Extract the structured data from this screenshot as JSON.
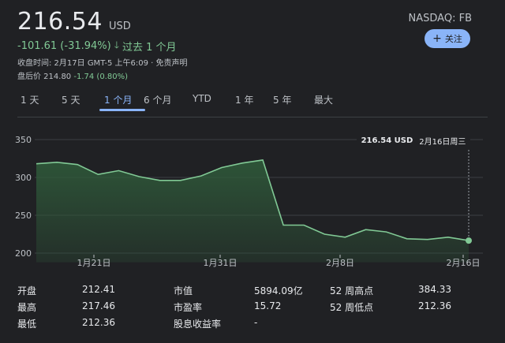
{
  "quote": {
    "price": "216.54",
    "currency": "USD",
    "ticker": "NASDAQ: FB",
    "follow_label": "关注",
    "change": "-101.61 (-31.94%)",
    "change_period": "过去 1 个月",
    "close_time": "收盘时间: 2月17日 GMT-5 上午6:09 · 免责声明",
    "after_hours_label": "盘后价 214.80",
    "after_hours_change": "-1.74 (0.80%)"
  },
  "tabs": [
    {
      "label": "1 天",
      "active": false
    },
    {
      "label": "5 天",
      "active": false
    },
    {
      "label": "1 个月",
      "active": true
    },
    {
      "label": "6 个月",
      "active": false
    },
    {
      "label": "YTD",
      "active": false
    },
    {
      "label": "1 年",
      "active": false
    },
    {
      "label": "5 年",
      "active": false
    },
    {
      "label": "最大",
      "active": false
    }
  ],
  "tooltip": {
    "value": "216.54 USD",
    "date": "2月16日周三"
  },
  "chart_data": {
    "type": "area",
    "title": "",
    "xlabel": "",
    "ylabel": "",
    "ylim": [
      190,
      360
    ],
    "yticks": [
      200,
      250,
      300,
      350
    ],
    "xtick_labels": [
      "1月21日",
      "1月31日",
      "2月8日",
      "2月16日"
    ],
    "series": [
      {
        "values": [
          318,
          320,
          317,
          304,
          309,
          301,
          296,
          296,
          302,
          313,
          319,
          323,
          237,
          237,
          225,
          221,
          231,
          228,
          219,
          218,
          221,
          216.54
        ]
      }
    ],
    "colors": {
      "line": "#81c995",
      "fill_top": "#2f5a3a",
      "grid": "#3c4043",
      "tick": "#bdc1c6"
    }
  },
  "stats": {
    "col1": [
      {
        "label": "开盘",
        "value": "212.41"
      },
      {
        "label": "最高",
        "value": "217.46"
      },
      {
        "label": "最低",
        "value": "212.36"
      }
    ],
    "col2": [
      {
        "label": "市值",
        "value": "5894.09亿"
      },
      {
        "label": "市盈率",
        "value": "15.72"
      },
      {
        "label": "股息收益率",
        "value": "-"
      }
    ],
    "col3": [
      {
        "label": "52 周高点",
        "value": "384.33"
      },
      {
        "label": "52 周低点",
        "value": "212.36"
      }
    ]
  }
}
